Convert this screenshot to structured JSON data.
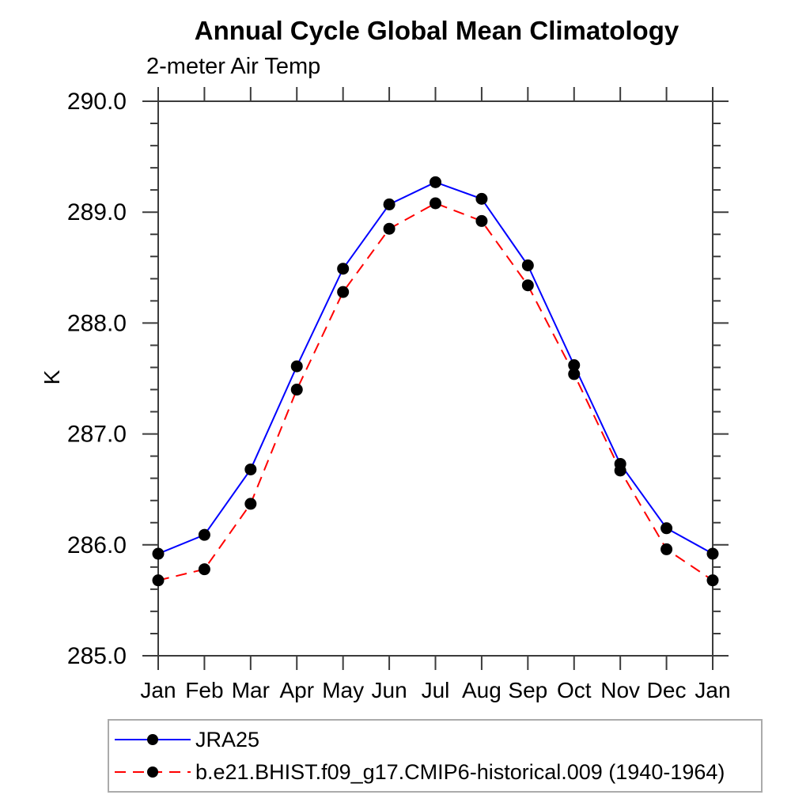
{
  "chart_data": {
    "type": "line",
    "title": "Annual Cycle Global Mean Climatology",
    "subtitle": "2-meter Air Temp",
    "ylabel": "K",
    "xlabel": "",
    "categories": [
      "Jan",
      "Feb",
      "Mar",
      "Apr",
      "May",
      "Jun",
      "Jul",
      "Aug",
      "Sep",
      "Oct",
      "Nov",
      "Dec",
      "Jan"
    ],
    "ylim": [
      285.0,
      290.0
    ],
    "y_major_ticks": [
      285.0,
      286.0,
      287.0,
      288.0,
      289.0,
      290.0
    ],
    "y_tick_labels": [
      "285.0",
      "286.0",
      "287.0",
      "288.0",
      "289.0",
      "290.0"
    ],
    "y_minor_step": 0.2,
    "grid": false,
    "legend_position": "bottom-left",
    "axis_color": "#3c3c3c",
    "series": [
      {
        "name": "JRA25",
        "color": "#0000ff",
        "line_style": "solid",
        "dash": "",
        "marker": "circle",
        "marker_color": "#000000",
        "values": [
          285.92,
          286.09,
          286.68,
          287.61,
          288.49,
          289.07,
          289.27,
          289.12,
          288.52,
          287.62,
          286.73,
          286.15,
          285.92
        ]
      },
      {
        "name": "b.e21.BHIST.f09_g17.CMIP6-historical.009 (1940-1964)",
        "color": "#ff0000",
        "line_style": "dashed",
        "dash": "14,9",
        "marker": "circle",
        "marker_color": "#000000",
        "values": [
          285.68,
          285.78,
          286.37,
          287.4,
          288.28,
          288.85,
          289.08,
          288.92,
          288.34,
          287.54,
          286.67,
          285.96,
          285.68
        ]
      }
    ]
  }
}
